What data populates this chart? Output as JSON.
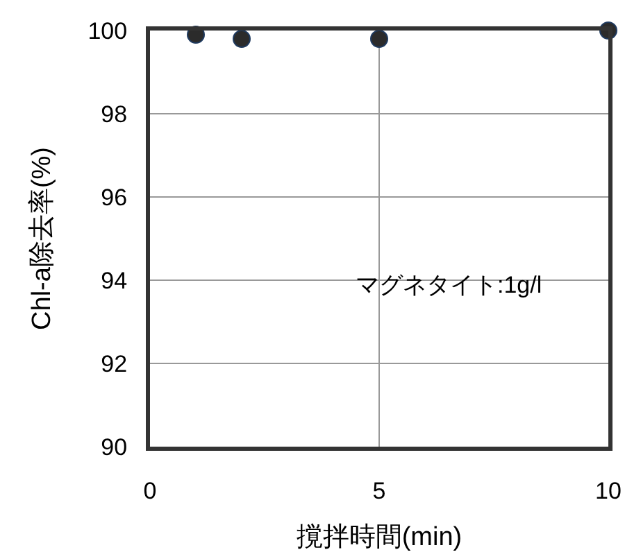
{
  "chart_data": {
    "type": "scatter",
    "xlabel": "撹拌時間(min)",
    "ylabel": "Chl-a除去率(%)",
    "x": [
      1,
      2,
      5,
      10
    ],
    "values": [
      99.9,
      99.8,
      99.8,
      100
    ],
    "color": "#2b2b2b",
    "marker": "circle",
    "xlim": [
      0,
      10
    ],
    "xticks": [
      0,
      5,
      10
    ],
    "ylim": [
      90,
      100
    ],
    "yticks": [
      90,
      92,
      94,
      96,
      98,
      100
    ],
    "grid": true,
    "annotations": [
      "マグネタイト:1g/l"
    ]
  }
}
